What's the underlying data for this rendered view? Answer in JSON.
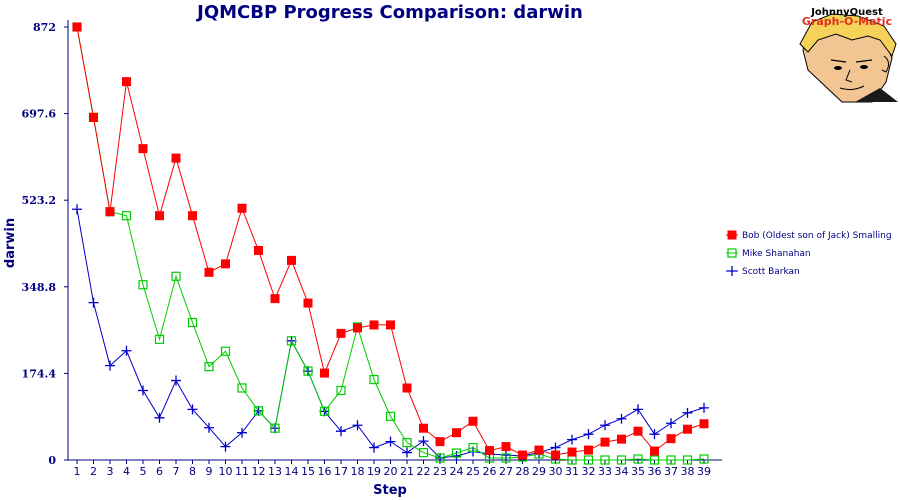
{
  "logo": {
    "line1": "JohnnyQuest",
    "line2": "Graph-O-Matic",
    "icon": "johnny-quest-face"
  },
  "colors": {
    "title": "#000080",
    "axis": "#000080",
    "series": [
      "#ff0000",
      "#00cc00",
      "#0000cc"
    ]
  },
  "chart_data": {
    "type": "line",
    "title": "JQMCBP Progress Comparison: darwin",
    "xlabel": "Step",
    "ylabel": "darwin",
    "ylim": [
      0,
      872
    ],
    "yticks": [
      "0",
      "174.4",
      "348.8",
      "523.2",
      "697.6",
      "872"
    ],
    "grid": false,
    "legend_position": "right",
    "categories": [
      1,
      2,
      3,
      4,
      5,
      6,
      7,
      8,
      9,
      10,
      11,
      12,
      13,
      14,
      15,
      16,
      17,
      18,
      19,
      20,
      21,
      22,
      23,
      24,
      25,
      26,
      27,
      28,
      29,
      30,
      31,
      32,
      33,
      34,
      35,
      36,
      37,
      38,
      39
    ],
    "series": [
      {
        "name": "Bob (Oldest son of Jack) Smalling",
        "marker": "filled-square",
        "color": "#ff0000",
        "values": [
          872,
          690,
          500,
          762,
          627,
          492,
          608,
          492,
          378,
          395,
          507,
          422,
          325,
          402,
          316,
          175,
          255,
          266,
          272,
          272,
          145,
          64,
          37,
          55,
          78,
          19,
          27,
          10,
          20,
          10,
          16,
          20,
          36,
          42,
          58,
          18,
          43,
          62,
          73
        ]
      },
      {
        "name": "Mike Shanahan",
        "marker": "hollow-square",
        "color": "#00cc00",
        "values": [
          872,
          690,
          500,
          492,
          353,
          243,
          370,
          277,
          188,
          219,
          145,
          99,
          64,
          240,
          179,
          98,
          140,
          268,
          162,
          88,
          35,
          15,
          4,
          14,
          25,
          4,
          4,
          6,
          12,
          2,
          0,
          0,
          0,
          0,
          2,
          0,
          0,
          0,
          2
        ]
      },
      {
        "name": "Scott Barkan",
        "marker": "plus",
        "color": "#0000cc",
        "values": [
          505,
          317,
          190,
          220,
          140,
          85,
          160,
          102,
          65,
          27,
          55,
          99,
          64,
          240,
          179,
          98,
          58,
          70,
          25,
          37,
          15,
          38,
          4,
          8,
          17,
          12,
          10,
          8,
          15,
          25,
          41,
          52,
          70,
          83,
          102,
          52,
          74,
          95,
          105
        ]
      }
    ]
  }
}
